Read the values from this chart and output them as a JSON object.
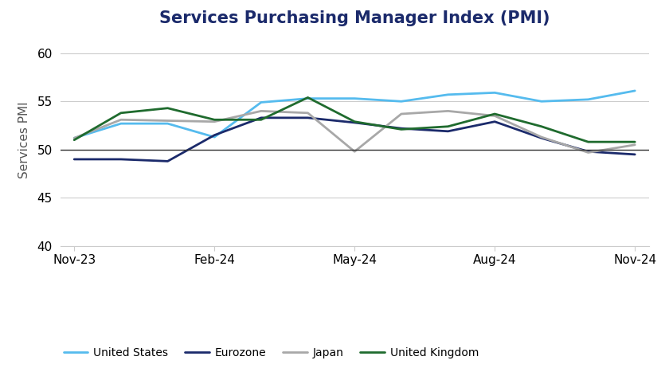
{
  "title": "Services Purchasing Manager Index (PMI)",
  "ylabel": "Services PMI",
  "ylim": [
    40,
    62
  ],
  "yticks": [
    40,
    45,
    50,
    55,
    60
  ],
  "x_labels": [
    "Nov-23",
    "Feb-24",
    "May-24",
    "Aug-24",
    "Nov-24"
  ],
  "x_tick_positions": [
    0,
    3,
    6,
    9,
    12
  ],
  "series": {
    "United States": {
      "color": "#55BBEE",
      "values": [
        51.2,
        52.7,
        52.7,
        51.3,
        54.9,
        55.3,
        55.3,
        55.0,
        55.7,
        55.9,
        55.0,
        55.2,
        56.1
      ]
    },
    "Eurozone": {
      "color": "#1B2A6B",
      "values": [
        49.0,
        49.0,
        48.8,
        51.5,
        53.3,
        53.3,
        52.8,
        52.2,
        51.9,
        52.9,
        51.2,
        49.8,
        49.5
      ]
    },
    "Japan": {
      "color": "#A8A8A8",
      "values": [
        51.2,
        53.1,
        53.0,
        52.9,
        54.0,
        53.8,
        49.8,
        53.7,
        54.0,
        53.5,
        51.3,
        49.7,
        50.5
      ]
    },
    "United Kingdom": {
      "color": "#1F6B2E",
      "values": [
        51.0,
        53.8,
        54.3,
        53.1,
        53.1,
        55.4,
        52.9,
        52.1,
        52.4,
        53.7,
        52.4,
        50.8,
        50.8
      ]
    }
  },
  "background_color": "#FFFFFF",
  "grid_color": "#CCCCCC",
  "title_color": "#1B2A6B",
  "title_fontsize": 15,
  "axis_fontsize": 11,
  "legend_fontsize": 10,
  "line_width": 2.0,
  "reference_line_value": 50,
  "reference_line_color": "#333333"
}
